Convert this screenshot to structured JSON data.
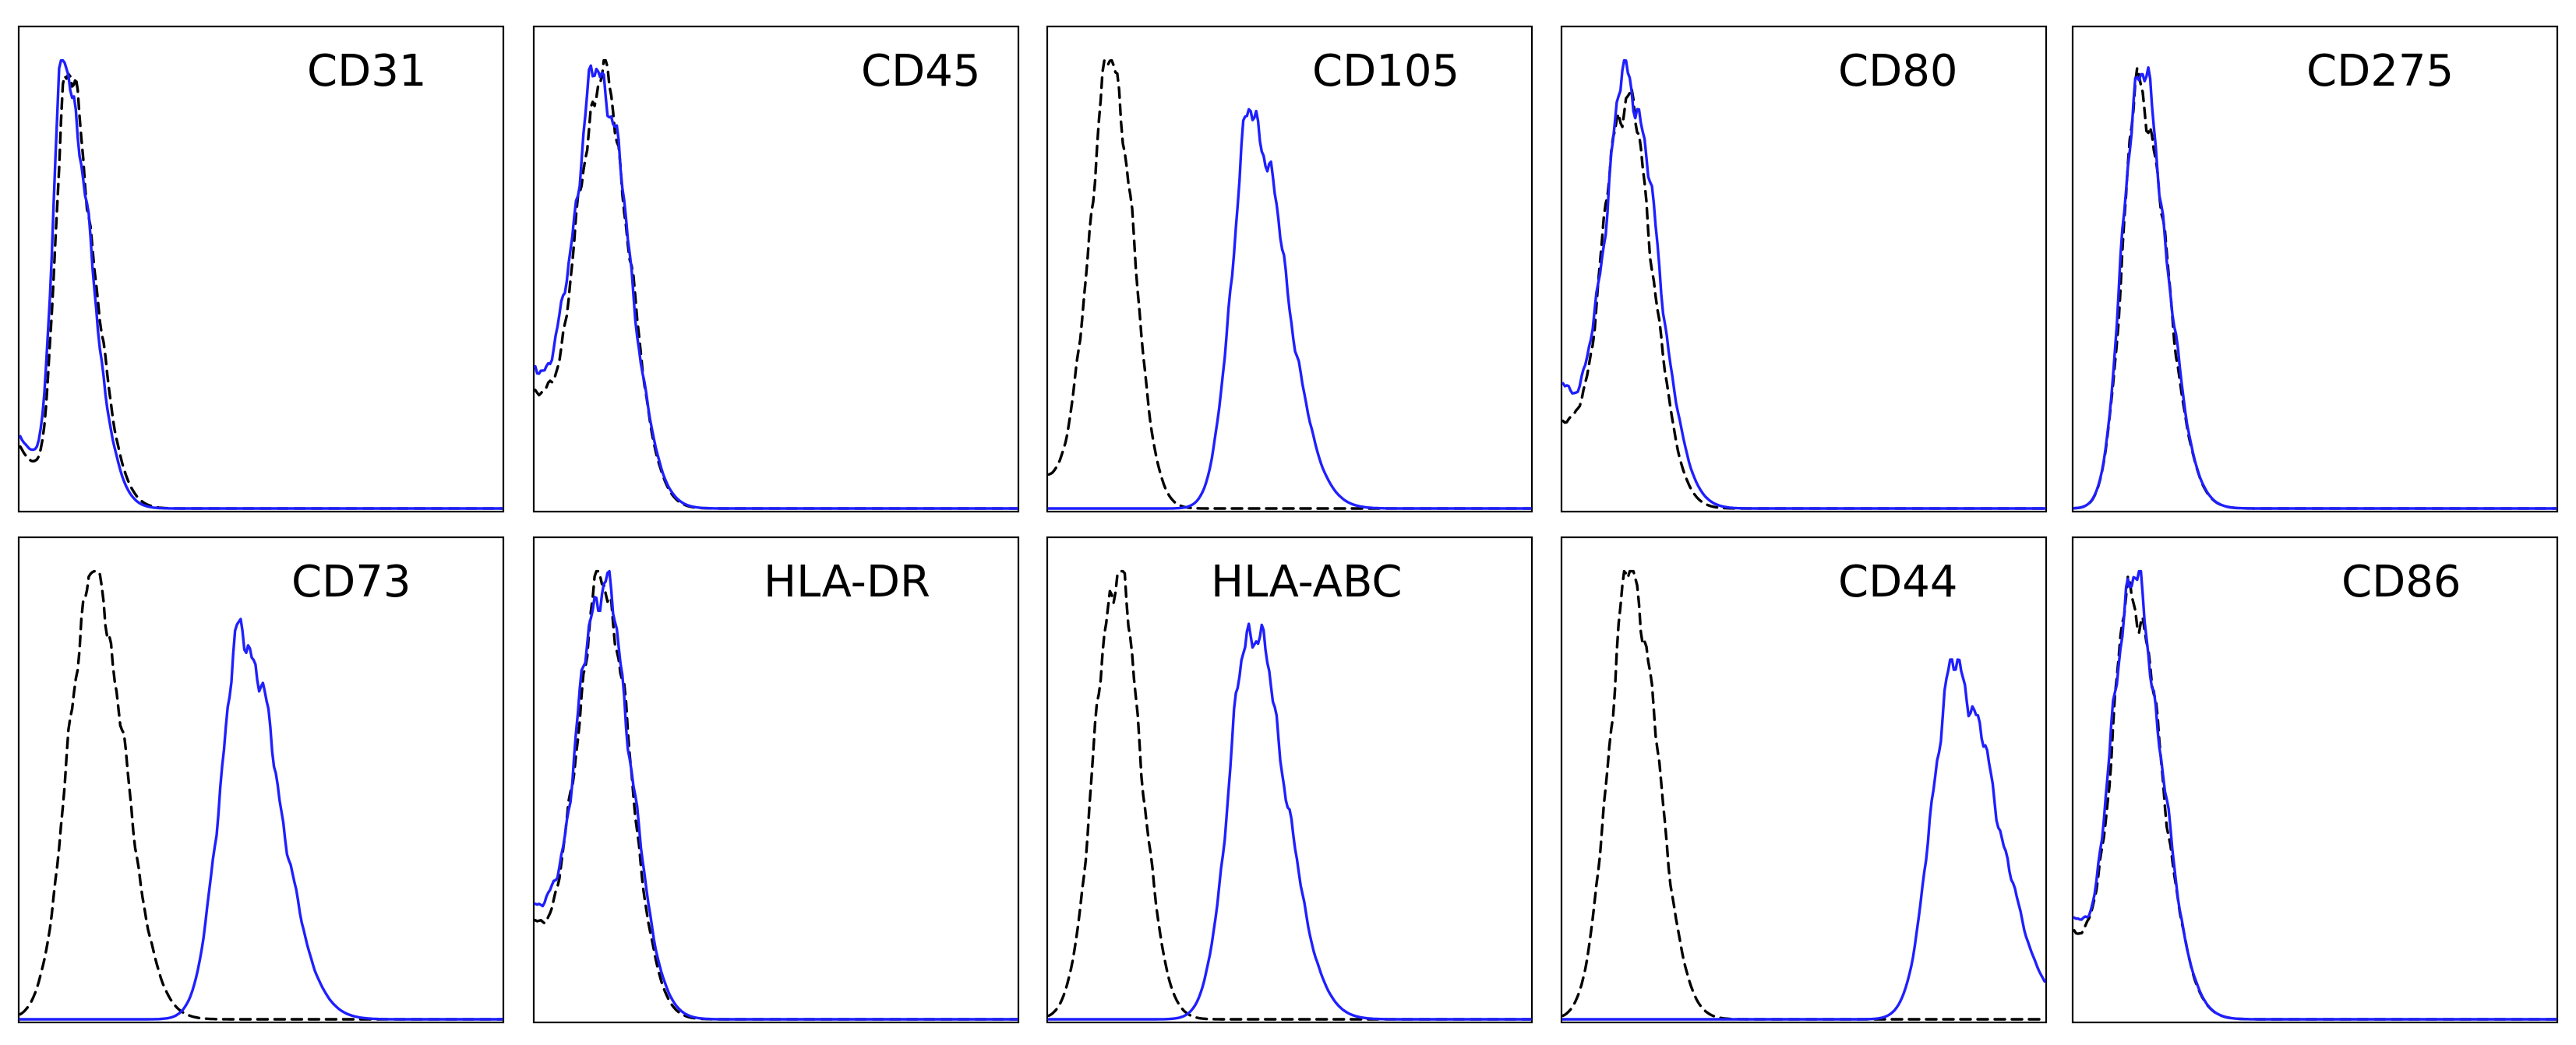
{
  "figure": {
    "colors": {
      "isotype": "#000000",
      "stained": "#1f1fff",
      "frame": "#000000",
      "background": "#ffffff"
    }
  },
  "chart_data": [
    {
      "type": "line",
      "title": "CD31",
      "series": [
        {
          "style": "dashed",
          "color": "#000000",
          "peak": 0.095,
          "sigma_left": 0.022,
          "sigma_right": 0.055,
          "height": 0.97,
          "floor_left": 0.14
        },
        {
          "style": "solid",
          "color": "#1f1fff",
          "peak": 0.09,
          "sigma_left": 0.022,
          "sigma_right": 0.053,
          "height": 1.0,
          "floor_left": 0.16
        }
      ]
    },
    {
      "type": "line",
      "title": "CD45",
      "series": [
        {
          "style": "dashed",
          "color": "#000000",
          "peak": 0.14,
          "sigma_left": 0.05,
          "sigma_right": 0.055,
          "height": 0.96,
          "floor_left": 0.25
        },
        {
          "style": "solid",
          "color": "#1f1fff",
          "peak": 0.135,
          "sigma_left": 0.05,
          "sigma_right": 0.058,
          "height": 0.97,
          "floor_left": 0.3
        }
      ]
    },
    {
      "type": "line",
      "title": "CD105",
      "series": [
        {
          "style": "dashed",
          "color": "#000000",
          "peak": 0.13,
          "sigma_left": 0.045,
          "sigma_right": 0.045,
          "height": 1.0,
          "floor_left": 0.06
        },
        {
          "style": "solid",
          "color": "#1f1fff",
          "peak": 0.42,
          "sigma_left": 0.04,
          "sigma_right": 0.07,
          "height": 0.88,
          "floor_left": 0.0
        }
      ]
    },
    {
      "type": "line",
      "title": "CD80",
      "series": [
        {
          "style": "dashed",
          "color": "#000000",
          "peak": 0.13,
          "sigma_left": 0.045,
          "sigma_right": 0.055,
          "height": 0.92,
          "floor_left": 0.2
        },
        {
          "style": "solid",
          "color": "#1f1fff",
          "peak": 0.135,
          "sigma_left": 0.045,
          "sigma_right": 0.06,
          "height": 0.96,
          "floor_left": 0.28
        }
      ]
    },
    {
      "type": "line",
      "title": "CD275",
      "series": [
        {
          "style": "dashed",
          "color": "#000000",
          "peak": 0.135,
          "sigma_left": 0.035,
          "sigma_right": 0.055,
          "height": 0.94,
          "floor_left": 0.0
        },
        {
          "style": "solid",
          "color": "#1f1fff",
          "peak": 0.135,
          "sigma_left": 0.035,
          "sigma_right": 0.055,
          "height": 0.98,
          "floor_left": 0.0
        }
      ]
    },
    {
      "type": "line",
      "title": "CD73",
      "series": [
        {
          "style": "dashed",
          "color": "#000000",
          "peak": 0.15,
          "sigma_left": 0.05,
          "sigma_right": 0.065,
          "height": 1.0,
          "floor_left": 0.0
        },
        {
          "style": "solid",
          "color": "#1f1fff",
          "peak": 0.46,
          "sigma_left": 0.045,
          "sigma_right": 0.075,
          "height": 0.86,
          "floor_left": 0.0
        }
      ]
    },
    {
      "type": "line",
      "title": "HLA-DR",
      "series": [
        {
          "style": "dashed",
          "color": "#000000",
          "peak": 0.14,
          "sigma_left": 0.05,
          "sigma_right": 0.055,
          "height": 0.98,
          "floor_left": 0.2
        },
        {
          "style": "solid",
          "color": "#1f1fff",
          "peak": 0.14,
          "sigma_left": 0.05,
          "sigma_right": 0.058,
          "height": 0.97,
          "floor_left": 0.25
        }
      ]
    },
    {
      "type": "line",
      "title": "HLA-ABC",
      "series": [
        {
          "style": "dashed",
          "color": "#000000",
          "peak": 0.14,
          "sigma_left": 0.045,
          "sigma_right": 0.05,
          "height": 1.0,
          "floor_left": 0.0
        },
        {
          "style": "solid",
          "color": "#1f1fff",
          "peak": 0.42,
          "sigma_left": 0.045,
          "sigma_right": 0.07,
          "height": 0.88,
          "floor_left": 0.0
        }
      ]
    },
    {
      "type": "line",
      "title": "CD44",
      "series": [
        {
          "style": "dashed",
          "color": "#000000",
          "peak": 0.14,
          "sigma_left": 0.045,
          "sigma_right": 0.055,
          "height": 1.0,
          "floor_left": 0.0
        },
        {
          "style": "solid",
          "color": "#1f1fff",
          "peak": 0.81,
          "sigma_left": 0.045,
          "sigma_right": 0.09,
          "height": 0.78,
          "floor_left": 0.0
        }
      ]
    },
    {
      "type": "line",
      "title": "CD86",
      "series": [
        {
          "style": "dashed",
          "color": "#000000",
          "peak": 0.12,
          "sigma_left": 0.04,
          "sigma_right": 0.06,
          "height": 0.95,
          "floor_left": 0.2
        },
        {
          "style": "solid",
          "color": "#1f1fff",
          "peak": 0.12,
          "sigma_left": 0.04,
          "sigma_right": 0.06,
          "height": 0.98,
          "floor_left": 0.22
        }
      ]
    }
  ]
}
